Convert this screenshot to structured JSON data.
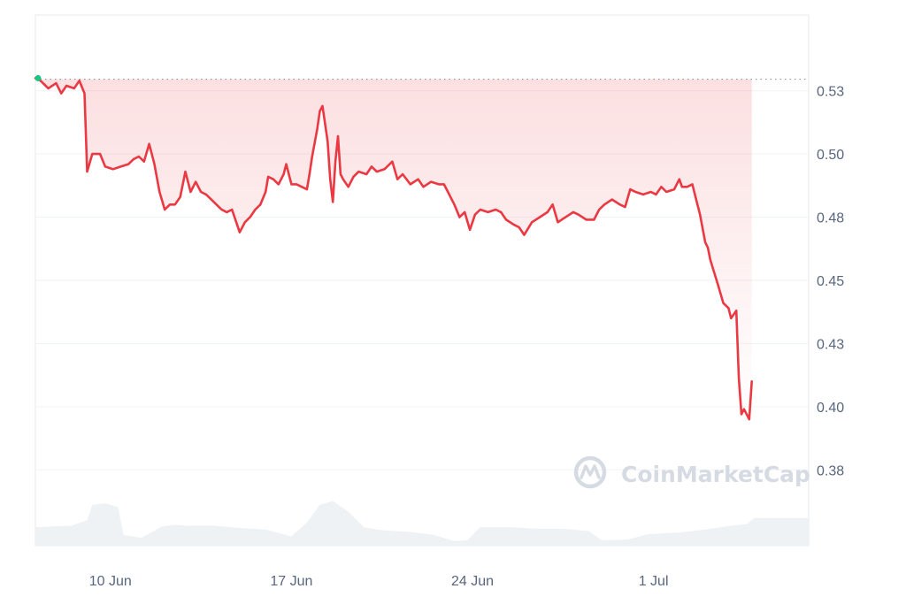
{
  "chart_data": {
    "type": "line",
    "title": "",
    "xlabel": "",
    "ylabel": "",
    "x_ticks": [
      {
        "label": "10 Jun",
        "day": 10
      },
      {
        "label": "17 Jun",
        "day": 17
      },
      {
        "label": "24 Jun",
        "day": 24
      },
      {
        "label": "1 Jul",
        "day": 31
      }
    ],
    "y_ticks": [
      "0.53",
      "0.50",
      "0.48",
      "0.45",
      "0.43",
      "0.40",
      "0.38"
    ],
    "y_tick_values": [
      0.525,
      0.5,
      0.475,
      0.45,
      0.425,
      0.4,
      0.375
    ],
    "ylim": [
      0.345,
      0.555
    ],
    "x_range_days": [
      7.1,
      37.0
    ],
    "reference_price": 0.5296,
    "grid": true,
    "line_color": "#ea3943",
    "open_marker_color": "#16c784",
    "volume_color": "#eff2f5",
    "series": [
      {
        "values": [
          [
            7.1,
            0.53
          ],
          [
            7.3,
            0.529
          ],
          [
            7.6,
            0.526
          ],
          [
            7.9,
            0.528
          ],
          [
            8.1,
            0.524
          ],
          [
            8.3,
            0.527
          ],
          [
            8.6,
            0.526
          ],
          [
            8.8,
            0.529
          ],
          [
            9.0,
            0.524
          ],
          [
            9.1,
            0.493
          ],
          [
            9.3,
            0.5
          ],
          [
            9.6,
            0.5
          ],
          [
            9.8,
            0.495
          ],
          [
            10.1,
            0.494
          ],
          [
            10.4,
            0.495
          ],
          [
            10.7,
            0.496
          ],
          [
            10.9,
            0.498
          ],
          [
            11.1,
            0.499
          ],
          [
            11.3,
            0.497
          ],
          [
            11.5,
            0.504
          ],
          [
            11.7,
            0.496
          ],
          [
            11.9,
            0.485
          ],
          [
            12.1,
            0.478
          ],
          [
            12.3,
            0.48
          ],
          [
            12.5,
            0.48
          ],
          [
            12.7,
            0.483
          ],
          [
            12.9,
            0.493
          ],
          [
            13.1,
            0.485
          ],
          [
            13.3,
            0.489
          ],
          [
            13.5,
            0.485
          ],
          [
            13.7,
            0.484
          ],
          [
            13.9,
            0.482
          ],
          [
            14.1,
            0.48
          ],
          [
            14.3,
            0.478
          ],
          [
            14.5,
            0.477
          ],
          [
            14.7,
            0.478
          ],
          [
            14.9,
            0.472
          ],
          [
            15.0,
            0.469
          ],
          [
            15.2,
            0.473
          ],
          [
            15.4,
            0.475
          ],
          [
            15.6,
            0.478
          ],
          [
            15.8,
            0.48
          ],
          [
            16.0,
            0.485
          ],
          [
            16.1,
            0.491
          ],
          [
            16.3,
            0.49
          ],
          [
            16.5,
            0.488
          ],
          [
            16.7,
            0.492
          ],
          [
            16.8,
            0.496
          ],
          [
            17.0,
            0.488
          ],
          [
            17.2,
            0.488
          ],
          [
            17.4,
            0.487
          ],
          [
            17.6,
            0.486
          ],
          [
            17.7,
            0.492
          ],
          [
            17.8,
            0.499
          ],
          [
            18.0,
            0.51
          ],
          [
            18.1,
            0.517
          ],
          [
            18.2,
            0.519
          ],
          [
            18.4,
            0.505
          ],
          [
            18.5,
            0.49
          ],
          [
            18.6,
            0.481
          ],
          [
            18.7,
            0.497
          ],
          [
            18.8,
            0.507
          ],
          [
            18.9,
            0.492
          ],
          [
            19.0,
            0.49
          ],
          [
            19.2,
            0.487
          ],
          [
            19.4,
            0.491
          ],
          [
            19.6,
            0.493
          ],
          [
            19.9,
            0.492
          ],
          [
            20.1,
            0.495
          ],
          [
            20.3,
            0.493
          ],
          [
            20.6,
            0.494
          ],
          [
            20.9,
            0.497
          ],
          [
            21.1,
            0.49
          ],
          [
            21.3,
            0.492
          ],
          [
            21.6,
            0.488
          ],
          [
            21.9,
            0.49
          ],
          [
            22.1,
            0.487
          ],
          [
            22.4,
            0.489
          ],
          [
            22.7,
            0.488
          ],
          [
            22.9,
            0.488
          ],
          [
            23.1,
            0.484
          ],
          [
            23.3,
            0.48
          ],
          [
            23.5,
            0.475
          ],
          [
            23.7,
            0.477
          ],
          [
            23.9,
            0.47
          ],
          [
            24.1,
            0.476
          ],
          [
            24.3,
            0.478
          ],
          [
            24.6,
            0.477
          ],
          [
            24.9,
            0.478
          ],
          [
            25.1,
            0.477
          ],
          [
            25.3,
            0.474
          ],
          [
            25.6,
            0.472
          ],
          [
            25.8,
            0.471
          ],
          [
            26.0,
            0.468
          ],
          [
            26.3,
            0.473
          ],
          [
            26.6,
            0.475
          ],
          [
            26.9,
            0.477
          ],
          [
            27.1,
            0.48
          ],
          [
            27.3,
            0.473
          ],
          [
            27.6,
            0.475
          ],
          [
            27.9,
            0.477
          ],
          [
            28.1,
            0.476
          ],
          [
            28.4,
            0.474
          ],
          [
            28.7,
            0.474
          ],
          [
            28.9,
            0.478
          ],
          [
            29.1,
            0.48
          ],
          [
            29.4,
            0.482
          ],
          [
            29.7,
            0.48
          ],
          [
            29.9,
            0.479
          ],
          [
            30.1,
            0.486
          ],
          [
            30.3,
            0.485
          ],
          [
            30.6,
            0.484
          ],
          [
            30.9,
            0.485
          ],
          [
            31.1,
            0.484
          ],
          [
            31.3,
            0.487
          ],
          [
            31.5,
            0.485
          ],
          [
            31.8,
            0.486
          ],
          [
            32.0,
            0.49
          ],
          [
            32.1,
            0.487
          ],
          [
            32.3,
            0.487
          ],
          [
            32.5,
            0.488
          ],
          [
            32.6,
            0.484
          ],
          [
            32.8,
            0.476
          ],
          [
            33.0,
            0.465
          ],
          [
            33.1,
            0.463
          ],
          [
            33.2,
            0.458
          ],
          [
            33.5,
            0.448
          ],
          [
            33.7,
            0.441
          ],
          [
            33.9,
            0.439
          ],
          [
            34.0,
            0.435
          ],
          [
            34.2,
            0.438
          ],
          [
            34.3,
            0.411
          ],
          [
            34.4,
            0.397
          ],
          [
            34.5,
            0.399
          ],
          [
            34.7,
            0.395
          ],
          [
            34.8,
            0.41
          ]
        ]
      }
    ],
    "volume": [
      [
        7.1,
        0.24
      ],
      [
        8.5,
        0.26
      ],
      [
        9.1,
        0.33
      ],
      [
        9.3,
        0.53
      ],
      [
        9.8,
        0.55
      ],
      [
        10.3,
        0.5
      ],
      [
        10.5,
        0.14
      ],
      [
        11.2,
        0.1
      ],
      [
        12.0,
        0.25
      ],
      [
        12.5,
        0.27
      ],
      [
        13.0,
        0.26
      ],
      [
        14.0,
        0.26
      ],
      [
        15.0,
        0.23
      ],
      [
        16.0,
        0.21
      ],
      [
        17.0,
        0.12
      ],
      [
        17.6,
        0.3
      ],
      [
        18.1,
        0.53
      ],
      [
        18.6,
        0.58
      ],
      [
        19.2,
        0.44
      ],
      [
        19.8,
        0.24
      ],
      [
        20.5,
        0.2
      ],
      [
        21.5,
        0.18
      ],
      [
        22.5,
        0.14
      ],
      [
        23.3,
        0.06
      ],
      [
        23.8,
        0.07
      ],
      [
        24.3,
        0.24
      ],
      [
        24.8,
        0.24
      ],
      [
        25.5,
        0.24
      ],
      [
        26.5,
        0.22
      ],
      [
        27.5,
        0.22
      ],
      [
        28.5,
        0.19
      ],
      [
        29.0,
        0.07
      ],
      [
        30.0,
        0.08
      ],
      [
        30.8,
        0.15
      ],
      [
        31.3,
        0.16
      ],
      [
        32.0,
        0.17
      ],
      [
        33.0,
        0.21
      ],
      [
        33.8,
        0.25
      ],
      [
        34.6,
        0.28
      ],
      [
        34.9,
        0.36
      ]
    ]
  },
  "watermark": {
    "text": "CoinMarketCap",
    "icon": "coinmarketcap-logo-icon"
  }
}
